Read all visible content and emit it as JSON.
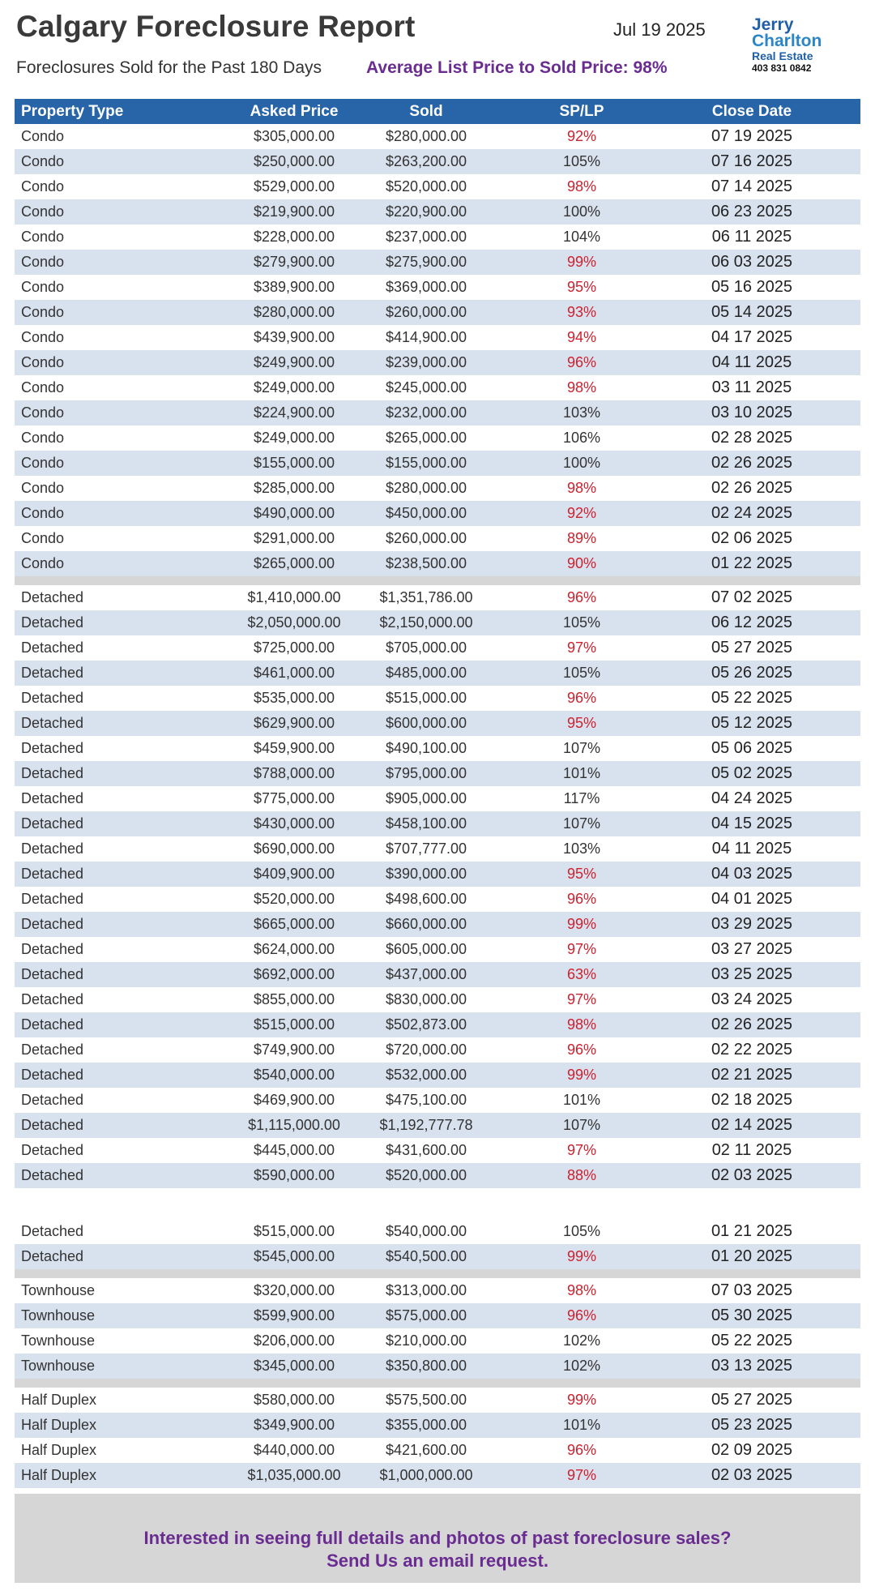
{
  "header": {
    "title": "Calgary Foreclosure Report",
    "date": "Jul 19 2025",
    "subtitle": "Foreclosures Sold for the Past 180 Days",
    "avg_ratio": "Average List Price to Sold Price: 98%"
  },
  "logo": {
    "line1": "Jerry",
    "line2": "Charlton",
    "line3": "Real Estate",
    "phone": "403 831 0842"
  },
  "colors": {
    "header_bg": "#2764a8",
    "row_alt": "#d8e1ee",
    "below_list": "#d0202e",
    "accent": "#6a2c91"
  },
  "table": {
    "columns": [
      "Property Type",
      "Asked Price",
      "Sold",
      "SP/LP",
      "Close Date"
    ],
    "groups": [
      {
        "rows": [
          [
            "Condo",
            "$305,000.00",
            "$280,000.00",
            "92%",
            "07 19 2025"
          ],
          [
            "Condo",
            "$250,000.00",
            "$263,200.00",
            "105%",
            "07 16 2025"
          ],
          [
            "Condo",
            "$529,000.00",
            "$520,000.00",
            "98%",
            "07 14 2025"
          ],
          [
            "Condo",
            "$219,900.00",
            "$220,900.00",
            "100%",
            "06 23 2025"
          ],
          [
            "Condo",
            "$228,000.00",
            "$237,000.00",
            "104%",
            "06 11 2025"
          ],
          [
            "Condo",
            "$279,900.00",
            "$275,900.00",
            "99%",
            "06 03 2025"
          ],
          [
            "Condo",
            "$389,900.00",
            "$369,000.00",
            "95%",
            "05 16 2025"
          ],
          [
            "Condo",
            "$280,000.00",
            "$260,000.00",
            "93%",
            "05 14 2025"
          ],
          [
            "Condo",
            "$439,900.00",
            "$414,900.00",
            "94%",
            "04 17 2025"
          ],
          [
            "Condo",
            "$249,900.00",
            "$239,000.00",
            "96%",
            "04 11 2025"
          ],
          [
            "Condo",
            "$249,000.00",
            "$245,000.00",
            "98%",
            "03 11 2025"
          ],
          [
            "Condo",
            "$224,900.00",
            "$232,000.00",
            "103%",
            "03 10 2025"
          ],
          [
            "Condo",
            "$249,000.00",
            "$265,000.00",
            "106%",
            "02 28 2025"
          ],
          [
            "Condo",
            "$155,000.00",
            "$155,000.00",
            "100%",
            "02 26 2025"
          ],
          [
            "Condo",
            "$285,000.00",
            "$280,000.00",
            "98%",
            "02 26 2025"
          ],
          [
            "Condo",
            "$490,000.00",
            "$450,000.00",
            "92%",
            "02 24 2025"
          ],
          [
            "Condo",
            "$291,000.00",
            "$260,000.00",
            "89%",
            "02 06 2025"
          ],
          [
            "Condo",
            "$265,000.00",
            "$238,500.00",
            "90%",
            "01 22 2025"
          ]
        ],
        "after": "sep"
      },
      {
        "rows": [
          [
            "Detached",
            "$1,410,000.00",
            "$1,351,786.00",
            "96%",
            "07 02 2025"
          ],
          [
            "Detached",
            "$2,050,000.00",
            "$2,150,000.00",
            "105%",
            "06 12 2025"
          ],
          [
            "Detached",
            "$725,000.00",
            "$705,000.00",
            "97%",
            "05 27 2025"
          ],
          [
            "Detached",
            "$461,000.00",
            "$485,000.00",
            "105%",
            "05 26 2025"
          ],
          [
            "Detached",
            "$535,000.00",
            "$515,000.00",
            "96%",
            "05 22 2025"
          ],
          [
            "Detached",
            "$629,900.00",
            "$600,000.00",
            "95%",
            "05 12 2025"
          ],
          [
            "Detached",
            "$459,900.00",
            "$490,100.00",
            "107%",
            "05 06 2025"
          ],
          [
            "Detached",
            "$788,000.00",
            "$795,000.00",
            "101%",
            "05 02 2025"
          ],
          [
            "Detached",
            "$775,000.00",
            "$905,000.00",
            "117%",
            "04 24 2025"
          ],
          [
            "Detached",
            "$430,000.00",
            "$458,100.00",
            "107%",
            "04 15 2025"
          ],
          [
            "Detached",
            "$690,000.00",
            "$707,777.00",
            "103%",
            "04 11 2025"
          ],
          [
            "Detached",
            "$409,900.00",
            "$390,000.00",
            "95%",
            "04 03 2025"
          ],
          [
            "Detached",
            "$520,000.00",
            "$498,600.00",
            "96%",
            "04 01 2025"
          ],
          [
            "Detached",
            "$665,000.00",
            "$660,000.00",
            "99%",
            "03 29 2025"
          ],
          [
            "Detached",
            "$624,000.00",
            "$605,000.00",
            "97%",
            "03 27 2025"
          ],
          [
            "Detached",
            "$692,000.00",
            "$437,000.00",
            "63%",
            "03 25 2025"
          ],
          [
            "Detached",
            "$855,000.00",
            "$830,000.00",
            "97%",
            "03 24 2025"
          ],
          [
            "Detached",
            "$515,000.00",
            "$502,873.00",
            "98%",
            "02 26 2025"
          ],
          [
            "Detached",
            "$749,900.00",
            "$720,000.00",
            "96%",
            "02 22 2025"
          ],
          [
            "Detached",
            "$540,000.00",
            "$532,000.00",
            "99%",
            "02 21 2025"
          ],
          [
            "Detached",
            "$469,900.00",
            "$475,100.00",
            "101%",
            "02 18 2025"
          ],
          [
            "Detached",
            "$1,115,000.00",
            "$1,192,777.78",
            "107%",
            "02 14 2025"
          ],
          [
            "Detached",
            "$445,000.00",
            "$431,600.00",
            "97%",
            "02 11 2025"
          ],
          [
            "Detached",
            "$590,000.00",
            "$520,000.00",
            "88%",
            "02 03 2025"
          ]
        ],
        "after": "gap"
      },
      {
        "rows": [
          [
            "Detached",
            "$515,000.00",
            "$540,000.00",
            "105%",
            "01 21 2025"
          ],
          [
            "Detached",
            "$545,000.00",
            "$540,500.00",
            "99%",
            "01 20 2025"
          ]
        ],
        "after": "sep"
      },
      {
        "rows": [
          [
            "Townhouse",
            "$320,000.00",
            "$313,000.00",
            "98%",
            "07 03 2025"
          ],
          [
            "Townhouse",
            "$599,900.00",
            "$575,000.00",
            "96%",
            "05 30 2025"
          ],
          [
            "Townhouse",
            "$206,000.00",
            "$210,000.00",
            "102%",
            "05 22 2025"
          ],
          [
            "Townhouse",
            "$345,000.00",
            "$350,800.00",
            "102%",
            "03 13 2025"
          ]
        ],
        "after": "sep"
      },
      {
        "rows": [
          [
            "Half Duplex",
            "$580,000.00",
            "$575,500.00",
            "99%",
            "05 27 2025"
          ],
          [
            "Half Duplex",
            "$349,900.00",
            "$355,000.00",
            "101%",
            "05 23 2025"
          ],
          [
            "Half Duplex",
            "$440,000.00",
            "$421,600.00",
            "96%",
            "02 09 2025"
          ],
          [
            "Half Duplex",
            "$1,035,000.00",
            "$1,000,000.00",
            "97%",
            "02 03 2025"
          ]
        ],
        "after": "none"
      }
    ]
  },
  "footer": {
    "line1": "Interested in seeing full details and photos of past foreclosure sales?",
    "line2": "Send Us an email request."
  }
}
